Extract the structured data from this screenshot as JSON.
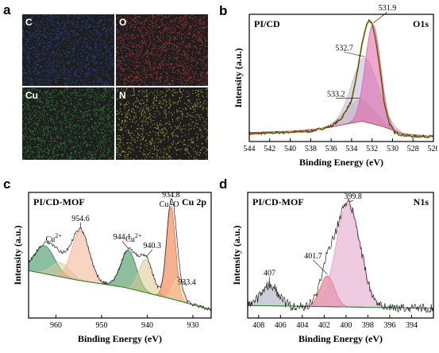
{
  "panels": {
    "a": {
      "letter": "a",
      "maps": [
        {
          "element": "C",
          "color": "#2a4aa6"
        },
        {
          "element": "O",
          "color": "#c33a3a"
        },
        {
          "element": "Cu",
          "color": "#2f8f3b"
        },
        {
          "element": "N",
          "color": "#c9b936"
        }
      ]
    },
    "b": {
      "letter": "b"
    },
    "c": {
      "letter": "c"
    },
    "d": {
      "letter": "d"
    }
  },
  "chart_data": [
    {
      "id": "b",
      "type": "line",
      "sample": "PI/CD",
      "region": "O1s",
      "xlabel": "Binding Energy (eV)",
      "ylabel": "Intensity (a.u.)",
      "xlim": [
        544,
        526
      ],
      "x_reversed": true,
      "xticks": [
        544,
        542,
        540,
        538,
        536,
        534,
        532,
        530,
        528,
        526
      ],
      "baseline": {
        "color": "#c06060",
        "x": [
          544,
          540,
          537,
          535,
          533,
          531,
          529,
          526
        ],
        "y": [
          0.07,
          0.08,
          0.1,
          0.13,
          0.16,
          0.12,
          0.06,
          0.04
        ]
      },
      "components": [
        {
          "center": 533.2,
          "height": 0.17,
          "width": 1.4,
          "color": "#d7a0a0"
        },
        {
          "center": 532.7,
          "height": 0.5,
          "width": 1.3,
          "color": "#b8b8da"
        },
        {
          "center": 531.9,
          "height": 0.78,
          "width": 0.75,
          "color": "#e060a8"
        }
      ],
      "envelope": {
        "color": "#b8a020",
        "x": [
          544,
          538,
          536,
          535,
          534,
          533.5,
          533,
          532.6,
          532.3,
          532,
          531.6,
          531.2,
          530.8,
          530.3,
          529.8,
          529,
          528,
          526
        ],
        "y": [
          0.06,
          0.08,
          0.12,
          0.18,
          0.32,
          0.52,
          0.76,
          0.9,
          0.95,
          0.93,
          0.78,
          0.55,
          0.3,
          0.14,
          0.07,
          0.05,
          0.04,
          0.04
        ]
      },
      "peak_labels": [
        {
          "text": "531.9",
          "x": 531.9
        },
        {
          "text": "532.7",
          "x": 532.7
        },
        {
          "text": "533.2",
          "x": 533.2
        }
      ]
    },
    {
      "id": "c",
      "type": "line",
      "sample": "PI/CD-MOF",
      "region": "Cu 2p",
      "xlabel": "Binding Energy (eV)",
      "ylabel": "Intensity (a.u.)",
      "xlim": [
        966,
        926
      ],
      "x_reversed": true,
      "xticks": [
        960,
        950,
        940,
        930
      ],
      "baseline": {
        "color": "#2a8a2a",
        "x": [
          966,
          955,
          945,
          935,
          926
        ],
        "y": [
          0.34,
          0.27,
          0.22,
          0.14,
          0.06
        ]
      },
      "components": [
        {
          "center": 962.5,
          "height": 0.2,
          "width": 2.2,
          "color": "#2a8a5a"
        },
        {
          "center": 959.0,
          "height": 0.1,
          "width": 2.0,
          "color": "#d8cca0"
        },
        {
          "center": 954.6,
          "height": 0.36,
          "width": 1.9,
          "color": "#f2b090"
        },
        {
          "center": 944.1,
          "height": 0.27,
          "width": 1.7,
          "color": "#2f8a4a"
        },
        {
          "center": 940.3,
          "height": 0.24,
          "width": 1.5,
          "color": "#d8c890"
        },
        {
          "center": 934.8,
          "height": 0.66,
          "width": 1.0,
          "color": "#f07030"
        },
        {
          "center": 933.4,
          "height": 0.16,
          "width": 1.0,
          "color": "#f2d0a0"
        }
      ],
      "peak_labels": [
        {
          "text": "954.6",
          "x": 954.6
        },
        {
          "text": "944.1",
          "x": 944.1
        },
        {
          "text": "940.3",
          "x": 940.3
        },
        {
          "text": "934.8",
          "x": 934.8
        },
        {
          "text": "933.4",
          "x": 933.4
        }
      ],
      "annotations": [
        {
          "text": "Cu",
          "sup": "2+",
          "x": 960.5
        },
        {
          "text": "Cu",
          "sup": "2+",
          "x": 943.0
        },
        {
          "text": "Cu -O",
          "x": 935.2
        }
      ]
    },
    {
      "id": "d",
      "type": "line",
      "sample": "PI/CD-MOF",
      "region": "N1s",
      "xlabel": "Binding Energy (eV)",
      "ylabel": "Intensity (a.u.)",
      "xlim": [
        409,
        392
      ],
      "x_reversed": true,
      "xticks": [
        408,
        406,
        404,
        402,
        400,
        398,
        396,
        394
      ],
      "baseline": {
        "color": "#2a8a2a",
        "x": [
          409,
          392
        ],
        "y": [
          0.09,
          0.07
        ]
      },
      "components": [
        {
          "center": 407,
          "height": 0.15,
          "width": 0.75,
          "color": "#a0a4b8"
        },
        {
          "center": 401.7,
          "height": 0.22,
          "width": 0.65,
          "color": "#e06070"
        },
        {
          "center": 399.8,
          "height": 0.74,
          "width": 1.1,
          "color": "#e0a0c8"
        }
      ],
      "peak_labels": [
        {
          "text": "407",
          "x": 407
        },
        {
          "text": "401.7",
          "x": 401.7
        },
        {
          "text": "399.8",
          "x": 399.8
        }
      ]
    }
  ]
}
